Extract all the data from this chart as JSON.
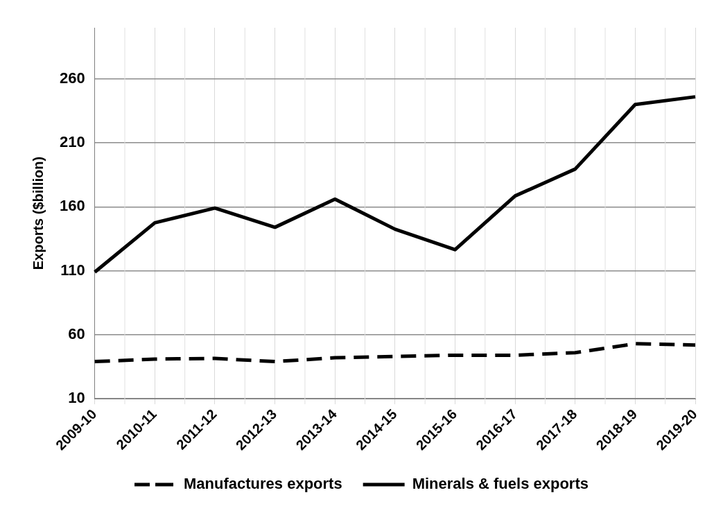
{
  "chart_data": {
    "type": "line",
    "ylabel": "Exports ($billion)",
    "categories": [
      "2009-10",
      "2010-11",
      "2011-12",
      "2012-13",
      "2013-14",
      "2014-15",
      "2015-16",
      "2016-17",
      "2017-18",
      "2018-19",
      "2019-20"
    ],
    "series": [
      {
        "name": "Manufactures exports",
        "color": "#000000",
        "line_style": "dashed",
        "values": [
          39,
          41,
          41.5,
          39,
          42,
          43,
          44,
          44,
          46,
          53,
          52
        ]
      },
      {
        "name": "Minerals & fuels exports",
        "color": "#000000",
        "line_style": "solid",
        "values": [
          109,
          147.5,
          159,
          144,
          166,
          142.5,
          126.5,
          168.5,
          189.5,
          240,
          246
        ]
      }
    ],
    "ylim": [
      10,
      300
    ],
    "yticks": [
      10,
      60,
      110,
      160,
      210,
      260
    ],
    "grid": true,
    "legend": "bottom",
    "marker": "none"
  }
}
